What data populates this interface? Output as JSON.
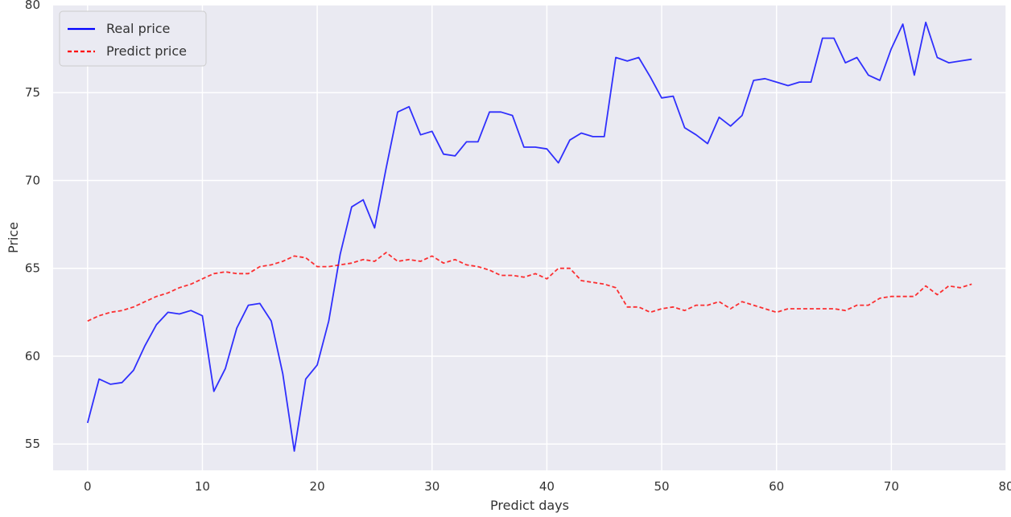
{
  "chart_data": {
    "type": "line",
    "title": "",
    "xlabel": "Predict days",
    "ylabel": "Price",
    "xlim": [
      -3,
      80
    ],
    "ylim": [
      53.5,
      80
    ],
    "xticks": [
      0,
      10,
      20,
      30,
      40,
      50,
      60,
      70,
      80
    ],
    "yticks": [
      55,
      60,
      65,
      70,
      75,
      80
    ],
    "grid": true,
    "legend_position": "top-left",
    "background_color": "#eaeaf2",
    "series": [
      {
        "name": "Real price",
        "color": "#0000ff",
        "style": "solid",
        "x": [
          0,
          1,
          2,
          3,
          4,
          5,
          6,
          7,
          8,
          9,
          10,
          11,
          12,
          13,
          14,
          15,
          16,
          17,
          18,
          19,
          20,
          21,
          22,
          23,
          24,
          25,
          26,
          27,
          28,
          29,
          30,
          31,
          32,
          33,
          34,
          35,
          36,
          37,
          38,
          39,
          40,
          41,
          42,
          43,
          44,
          45,
          46,
          47,
          48,
          49,
          50,
          51,
          52,
          53,
          54,
          55,
          56,
          57,
          58,
          59,
          60,
          61,
          62,
          63,
          64,
          65,
          66,
          67,
          68,
          69,
          70,
          71,
          72,
          73,
          74,
          75,
          76,
          77
        ],
        "values": [
          56.2,
          58.7,
          58.4,
          58.5,
          59.2,
          60.6,
          61.8,
          62.5,
          62.4,
          62.6,
          62.3,
          58.0,
          59.3,
          61.6,
          62.9,
          63.0,
          62.0,
          59.0,
          54.6,
          58.7,
          59.5,
          62.0,
          65.8,
          68.5,
          68.9,
          67.3,
          70.7,
          73.9,
          74.2,
          72.6,
          72.8,
          71.5,
          71.4,
          72.2,
          72.2,
          73.9,
          73.9,
          73.7,
          71.9,
          71.9,
          71.8,
          71.0,
          72.3,
          72.7,
          72.5,
          72.5,
          77.0,
          76.8,
          77.0,
          75.9,
          74.7,
          74.8,
          73.0,
          72.6,
          72.1,
          73.6,
          73.1,
          73.7,
          75.7,
          75.8,
          75.6,
          75.4,
          75.6,
          75.6,
          78.1,
          78.1,
          76.7,
          77.0,
          76.0,
          75.7,
          77.5,
          78.9,
          76.0,
          79.0,
          77.0,
          76.7,
          76.8,
          76.9
        ]
      },
      {
        "name": "Predict price",
        "color": "#ff0000",
        "style": "dashed",
        "x": [
          0,
          1,
          2,
          3,
          4,
          5,
          6,
          7,
          8,
          9,
          10,
          11,
          12,
          13,
          14,
          15,
          16,
          17,
          18,
          19,
          20,
          21,
          22,
          23,
          24,
          25,
          26,
          27,
          28,
          29,
          30,
          31,
          32,
          33,
          34,
          35,
          36,
          37,
          38,
          39,
          40,
          41,
          42,
          43,
          44,
          45,
          46,
          47,
          48,
          49,
          50,
          51,
          52,
          53,
          54,
          55,
          56,
          57,
          58,
          59,
          60,
          61,
          62,
          63,
          64,
          65,
          66,
          67,
          68,
          69,
          70,
          71,
          72,
          73,
          74,
          75,
          76,
          77
        ],
        "values": [
          62.0,
          62.3,
          62.5,
          62.6,
          62.8,
          63.1,
          63.4,
          63.6,
          63.9,
          64.1,
          64.4,
          64.7,
          64.8,
          64.7,
          64.7,
          65.1,
          65.2,
          65.4,
          65.7,
          65.6,
          65.1,
          65.1,
          65.2,
          65.3,
          65.5,
          65.4,
          65.9,
          65.4,
          65.5,
          65.4,
          65.7,
          65.3,
          65.5,
          65.2,
          65.1,
          64.9,
          64.6,
          64.6,
          64.5,
          64.7,
          64.4,
          65.0,
          65.0,
          64.3,
          64.2,
          64.1,
          63.9,
          62.8,
          62.8,
          62.5,
          62.7,
          62.8,
          62.6,
          62.9,
          62.9,
          63.1,
          62.7,
          63.1,
          62.9,
          62.7,
          62.5,
          62.7,
          62.7,
          62.7,
          62.7,
          62.7,
          62.6,
          62.9,
          62.9,
          63.3,
          63.4,
          63.4,
          63.4,
          64.0,
          63.5,
          64.0,
          63.9,
          64.1
        ]
      }
    ]
  }
}
